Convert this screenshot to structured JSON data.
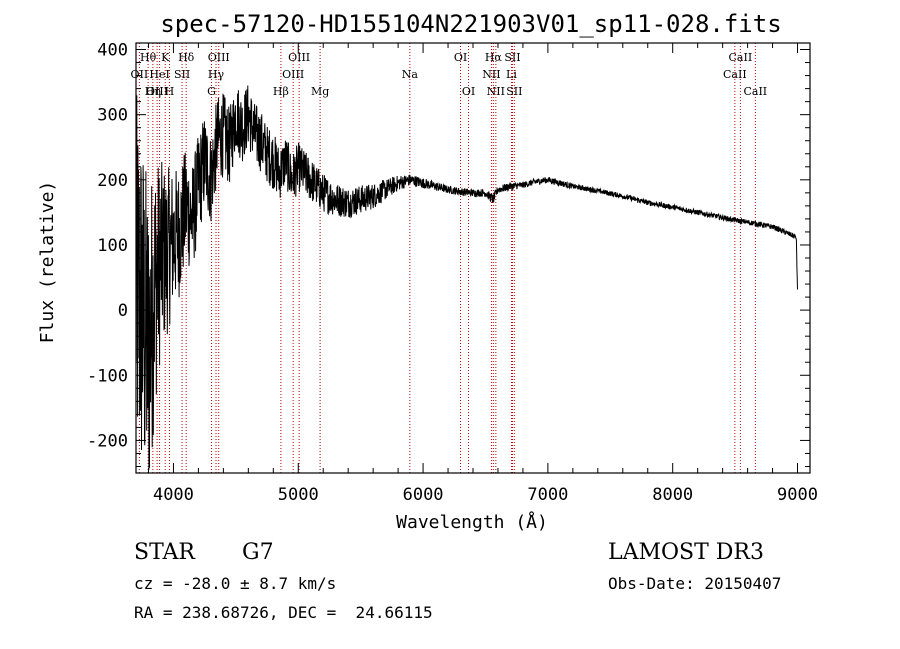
{
  "chart_data": {
    "type": "line",
    "title": "spec-57120-HD155104N221903V01_sp11-028.fits",
    "xlabel": "Wavelength (Å)",
    "ylabel": "Flux (relative)",
    "xlim": [
      3700,
      9100
    ],
    "ylim": [
      -250,
      410
    ],
    "xticks": [
      4000,
      5000,
      6000,
      7000,
      8000,
      9000
    ],
    "yticks": [
      -200,
      -100,
      0,
      100,
      200,
      300,
      400
    ],
    "line_color": "#000000",
    "marker_color": "#c00000",
    "lines": [
      {
        "label": "OII",
        "wave": 3727,
        "row": 2
      },
      {
        "label": "Hθ",
        "wave": 3797,
        "row": 1
      },
      {
        "label": "OIII",
        "wave": 3869,
        "row": 3
      },
      {
        "label": "Hη",
        "wave": 3835,
        "row": 3
      },
      {
        "label": "HeI",
        "wave": 3889,
        "row": 2
      },
      {
        "label": "K",
        "wave": 3934,
        "row": 1
      },
      {
        "label": "H",
        "wave": 3968,
        "row": 3
      },
      {
        "label": "SII",
        "wave": 4069,
        "row": 2
      },
      {
        "label": "Hδ",
        "wave": 4102,
        "row": 1
      },
      {
        "label": "G",
        "wave": 4305,
        "row": 3
      },
      {
        "label": "Hγ",
        "wave": 4341,
        "row": 2
      },
      {
        "label": "OIII",
        "wave": 4363,
        "row": 1
      },
      {
        "label": "Hβ",
        "wave": 4861,
        "row": 3
      },
      {
        "label": "OIII",
        "wave": 4959,
        "row": 2
      },
      {
        "label": "OIII",
        "wave": 5007,
        "row": 1
      },
      {
        "label": "Mg",
        "wave": 5175,
        "row": 3
      },
      {
        "label": "Na",
        "wave": 5894,
        "row": 2
      },
      {
        "label": "OI",
        "wave": 6300,
        "row": 1
      },
      {
        "label": "OI",
        "wave": 6364,
        "row": 3
      },
      {
        "label": "NII",
        "wave": 6548,
        "row": 2
      },
      {
        "label": "Hα",
        "wave": 6563,
        "row": 1
      },
      {
        "label": "NII",
        "wave": 6583,
        "row": 3
      },
      {
        "label": "Li",
        "wave": 6708,
        "row": 2
      },
      {
        "label": "SII",
        "wave": 6716,
        "row": 1
      },
      {
        "label": "SII",
        "wave": 6731,
        "row": 3
      },
      {
        "label": "CaII",
        "wave": 8498,
        "row": 2
      },
      {
        "label": "CaII",
        "wave": 8542,
        "row": 1
      },
      {
        "label": "CaII",
        "wave": 8662,
        "row": 3
      }
    ],
    "spectrum_anchors": {
      "x": [
        3700,
        3750,
        3800,
        3850,
        3900,
        3950,
        4000,
        4050,
        4100,
        4150,
        4200,
        4250,
        4300,
        4350,
        4400,
        4450,
        4500,
        4550,
        4600,
        4650,
        4700,
        4750,
        4800,
        4850,
        4900,
        4950,
        5000,
        5050,
        5100,
        5150,
        5200,
        5300,
        5400,
        5500,
        5600,
        5700,
        5800,
        5900,
        6000,
        6100,
        6200,
        6300,
        6400,
        6500,
        6560,
        6600,
        6700,
        6800,
        6900,
        7000,
        7100,
        7200,
        7400,
        7600,
        7800,
        8000,
        8200,
        8400,
        8500,
        8600,
        8800,
        8990,
        9000
      ],
      "y": [
        40,
        0,
        -60,
        40,
        80,
        90,
        110,
        120,
        160,
        140,
        190,
        230,
        200,
        260,
        270,
        250,
        300,
        280,
        300,
        270,
        260,
        240,
        230,
        210,
        230,
        200,
        220,
        210,
        200,
        190,
        180,
        170,
        165,
        170,
        175,
        185,
        195,
        200,
        195,
        190,
        185,
        182,
        180,
        180,
        170,
        185,
        190,
        192,
        197,
        200,
        195,
        190,
        183,
        175,
        165,
        158,
        150,
        142,
        138,
        135,
        128,
        112,
        30
      ],
      "noise": [
        300,
        280,
        250,
        200,
        150,
        130,
        110,
        100,
        90,
        85,
        80,
        75,
        70,
        68,
        65,
        60,
        55,
        55,
        50,
        50,
        48,
        45,
        45,
        42,
        40,
        40,
        38,
        36,
        34,
        32,
        30,
        26,
        24,
        22,
        20,
        16,
        12,
        9,
        8,
        7,
        6,
        6,
        6,
        6,
        8,
        6,
        6,
        5,
        5,
        5,
        5,
        4,
        4,
        4,
        4,
        4,
        4,
        4,
        4,
        4,
        4,
        4,
        0
      ]
    }
  },
  "info": {
    "object_type": "STAR",
    "subclass": "G7",
    "survey": "LAMOST DR3",
    "cz": "cz = -28.0 ± 8.7 km/s",
    "obs_date": "Obs-Date: 20150407",
    "coords": "RA = 238.68726, DEC =  24.66115"
  }
}
